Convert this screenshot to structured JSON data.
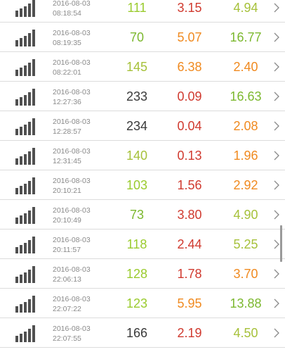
{
  "colors": {
    "green_light": "#9acb2e",
    "green_mid": "#7cb82f",
    "dark": "#3a3a3a",
    "red": "#d03a2f",
    "orange": "#f08a20",
    "lime": "#a6c13a",
    "timestamp": "#8a8a8a",
    "icon": "#505050",
    "divider": "#dcdcdc"
  },
  "icons": {
    "signal": "signal-strength-icon",
    "chevron": "chevron-right-icon"
  },
  "rows": [
    {
      "date": "2016-08-03",
      "time": "08:18:54",
      "v1": "111",
      "v1_color": "#9acb2e",
      "v2": "3.15",
      "v2_color": "#d03a2f",
      "v3": "4.94",
      "v3_color": "#a6c13a"
    },
    {
      "date": "2016-08-03",
      "time": "08:19:35",
      "v1": "70",
      "v1_color": "#7cb82f",
      "v2": "5.07",
      "v2_color": "#f08a20",
      "v3": "16.77",
      "v3_color": "#7cb82f"
    },
    {
      "date": "2016-08-03",
      "time": "08:22:01",
      "v1": "145",
      "v1_color": "#a6c13a",
      "v2": "6.38",
      "v2_color": "#f08a20",
      "v3": "2.40",
      "v3_color": "#f08a20"
    },
    {
      "date": "2016-08-03",
      "time": "12:27:36",
      "v1": "233",
      "v1_color": "#3a3a3a",
      "v2": "0.09",
      "v2_color": "#d03a2f",
      "v3": "16.63",
      "v3_color": "#7cb82f"
    },
    {
      "date": "2016-08-03",
      "time": "12:28:57",
      "v1": "234",
      "v1_color": "#3a3a3a",
      "v2": "0.04",
      "v2_color": "#d03a2f",
      "v3": "2.08",
      "v3_color": "#f08a20"
    },
    {
      "date": "2016-08-03",
      "time": "12:31:45",
      "v1": "140",
      "v1_color": "#a6c13a",
      "v2": "0.13",
      "v2_color": "#d03a2f",
      "v3": "1.96",
      "v3_color": "#f08a20"
    },
    {
      "date": "2016-08-03",
      "time": "20:10:21",
      "v1": "103",
      "v1_color": "#9acb2e",
      "v2": "1.56",
      "v2_color": "#d03a2f",
      "v3": "2.92",
      "v3_color": "#f08a20"
    },
    {
      "date": "2016-08-03",
      "time": "20:10:49",
      "v1": "73",
      "v1_color": "#7cb82f",
      "v2": "3.80",
      "v2_color": "#d03a2f",
      "v3": "4.90",
      "v3_color": "#a6c13a"
    },
    {
      "date": "2016-08-03",
      "time": "20:11:57",
      "v1": "118",
      "v1_color": "#9acb2e",
      "v2": "2.44",
      "v2_color": "#d03a2f",
      "v3": "5.25",
      "v3_color": "#a6c13a"
    },
    {
      "date": "2016-08-03",
      "time": "22:06:13",
      "v1": "128",
      "v1_color": "#9acb2e",
      "v2": "1.78",
      "v2_color": "#d03a2f",
      "v3": "3.70",
      "v3_color": "#f08a20"
    },
    {
      "date": "2016-08-03",
      "time": "22:07:22",
      "v1": "123",
      "v1_color": "#9acb2e",
      "v2": "5.95",
      "v2_color": "#f08a20",
      "v3": "13.88",
      "v3_color": "#7cb82f"
    },
    {
      "date": "2016-08-03",
      "time": "22:07:55",
      "v1": "166",
      "v1_color": "#3a3a3a",
      "v2": "2.19",
      "v2_color": "#d03a2f",
      "v3": "4.50",
      "v3_color": "#a6c13a"
    }
  ]
}
